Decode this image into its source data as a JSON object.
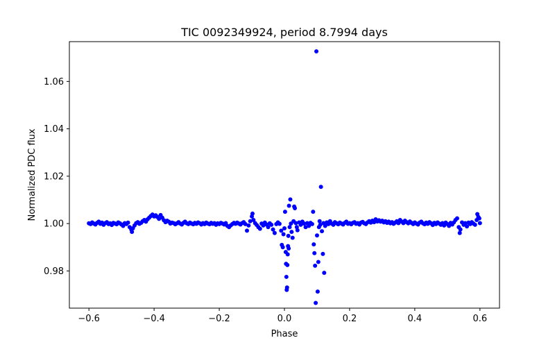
{
  "chart_data": {
    "type": "scatter",
    "title": "TIC 0092349924, period 8.7994 days",
    "xlabel": "Phase",
    "ylabel": "Normalized PDC flux",
    "xlim": [
      -0.66,
      0.66
    ],
    "ylim": [
      0.9643,
      1.0768
    ],
    "xticks": [
      -0.6,
      -0.4,
      -0.2,
      0.0,
      0.2,
      0.4,
      0.6
    ],
    "xtick_labels": [
      "−0.6",
      "−0.4",
      "−0.2",
      "0.0",
      "0.2",
      "0.4",
      "0.6"
    ],
    "yticks": [
      0.98,
      1.0,
      1.02,
      1.04,
      1.06
    ],
    "ytick_labels": [
      "0.98",
      "1.00",
      "1.02",
      "1.04",
      "1.06"
    ],
    "marker_color": "#0000ff",
    "grid": false,
    "series": [
      {
        "name": "PDC flux",
        "points": [
          [
            -0.6,
            1.0001
          ],
          [
            -0.595,
            0.9998
          ],
          [
            -0.59,
            1.0005
          ],
          [
            -0.585,
            1.0
          ],
          [
            -0.58,
            0.9996
          ],
          [
            -0.575,
            1.0003
          ],
          [
            -0.57,
            1.0008
          ],
          [
            -0.565,
            0.9999
          ],
          [
            -0.56,
            1.0004
          ],
          [
            -0.555,
            0.9995
          ],
          [
            -0.55,
            1.0002
          ],
          [
            -0.545,
            1.0006
          ],
          [
            -0.54,
            0.9998
          ],
          [
            -0.535,
            1.0001
          ],
          [
            -0.53,
            0.9994
          ],
          [
            -0.525,
            1.0003
          ],
          [
            -0.52,
            1.0
          ],
          [
            -0.515,
            0.9997
          ],
          [
            -0.51,
            1.0005
          ],
          [
            -0.505,
            1.0001
          ],
          [
            -0.5,
            0.9996
          ],
          [
            -0.495,
            0.999
          ],
          [
            -0.49,
            1.0002
          ],
          [
            -0.485,
            0.9998
          ],
          [
            -0.48,
            1.0004
          ],
          [
            -0.475,
            0.9985
          ],
          [
            -0.47,
            0.9975
          ],
          [
            -0.468,
            0.9965
          ],
          [
            -0.465,
            0.998
          ],
          [
            -0.46,
            0.9992
          ],
          [
            -0.455,
            1.0002
          ],
          [
            -0.45,
            1.0006
          ],
          [
            -0.445,
            0.9999
          ],
          [
            -0.44,
            1.0003
          ],
          [
            -0.435,
            1.001
          ],
          [
            -0.43,
            1.0015
          ],
          [
            -0.425,
            1.0008
          ],
          [
            -0.42,
            1.0018
          ],
          [
            -0.415,
            1.0025
          ],
          [
            -0.41,
            1.0032
          ],
          [
            -0.405,
            1.0038
          ],
          [
            -0.4,
            1.003
          ],
          [
            -0.395,
            1.0035
          ],
          [
            -0.39,
            1.0028
          ],
          [
            -0.385,
            1.002
          ],
          [
            -0.38,
            1.0036
          ],
          [
            -0.375,
            1.0025
          ],
          [
            -0.37,
            1.0014
          ],
          [
            -0.365,
            1.0006
          ],
          [
            -0.36,
            1.0012
          ],
          [
            -0.355,
            1.0008
          ],
          [
            -0.35,
            1.0
          ],
          [
            -0.345,
            1.0004
          ],
          [
            -0.34,
            1.0002
          ],
          [
            -0.335,
            0.9997
          ],
          [
            -0.33,
            1.0001
          ],
          [
            -0.325,
            1.0006
          ],
          [
            -0.32,
            1.0
          ],
          [
            -0.315,
            0.9996
          ],
          [
            -0.31,
            1.0003
          ],
          [
            -0.305,
            1.0008
          ],
          [
            -0.3,
            1.0001
          ],
          [
            -0.295,
            0.9998
          ],
          [
            -0.29,
            1.0004
          ],
          [
            -0.285,
            1.0
          ],
          [
            -0.28,
            0.9997
          ],
          [
            -0.275,
            1.0003
          ],
          [
            -0.27,
            0.9999
          ],
          [
            -0.265,
            1.0005
          ],
          [
            -0.26,
            1.0001
          ],
          [
            -0.255,
            0.9996
          ],
          [
            -0.25,
            1.0002
          ],
          [
            -0.245,
            0.9998
          ],
          [
            -0.24,
            1.0004
          ],
          [
            -0.235,
            1.0
          ],
          [
            -0.23,
            0.9997
          ],
          [
            -0.225,
            1.0003
          ],
          [
            -0.22,
            0.9999
          ],
          [
            -0.215,
            1.0002
          ],
          [
            -0.21,
            0.9995
          ],
          [
            -0.205,
            1.0001
          ],
          [
            -0.2,
            0.9998
          ],
          [
            -0.195,
            1.0003
          ],
          [
            -0.19,
            1.0
          ],
          [
            -0.185,
            0.9996
          ],
          [
            -0.18,
            1.0002
          ],
          [
            -0.175,
            0.999
          ],
          [
            -0.17,
            0.9985
          ],
          [
            -0.165,
            0.9992
          ],
          [
            -0.16,
            0.9998
          ],
          [
            -0.155,
            1.0003
          ],
          [
            -0.15,
            0.9999
          ],
          [
            -0.145,
            1.0004
          ],
          [
            -0.14,
            1.0
          ],
          [
            -0.135,
            0.9996
          ],
          [
            -0.13,
            1.0002
          ],
          [
            -0.125,
            1.0006
          ],
          [
            -0.12,
            0.9998
          ],
          [
            -0.115,
            0.997
          ],
          [
            -0.11,
            0.9992
          ],
          [
            -0.105,
            1.001
          ],
          [
            -0.1,
            1.003
          ],
          [
            -0.098,
            1.0042
          ],
          [
            -0.095,
            1.0015
          ],
          [
            -0.09,
            1.0002
          ],
          [
            -0.085,
            0.9994
          ],
          [
            -0.08,
            0.9985
          ],
          [
            -0.075,
            0.9978
          ],
          [
            -0.07,
            1.0
          ],
          [
            -0.065,
            0.9992
          ],
          [
            -0.06,
            1.0004
          ],
          [
            -0.055,
            0.9996
          ],
          [
            -0.05,
            0.9985
          ],
          [
            -0.045,
            1.0001
          ],
          [
            -0.04,
            0.9995
          ],
          [
            -0.035,
            0.9975
          ],
          [
            -0.03,
            0.996
          ],
          [
            -0.025,
            0.9998
          ],
          [
            -0.02,
            1.0005
          ],
          [
            -0.015,
            0.9999
          ],
          [
            -0.01,
            0.997
          ],
          [
            -0.008,
            0.991
          ],
          [
            -0.005,
            0.99
          ],
          [
            -0.003,
            0.9955
          ],
          [
            0.0,
            0.998
          ],
          [
            0.002,
            1.005
          ],
          [
            0.004,
            0.988
          ],
          [
            0.005,
            0.983
          ],
          [
            0.006,
            0.9775
          ],
          [
            0.007,
            0.972
          ],
          [
            0.008,
            0.973
          ],
          [
            0.009,
            0.9825
          ],
          [
            0.01,
            0.987
          ],
          [
            0.011,
            0.9905
          ],
          [
            0.012,
            0.9948
          ],
          [
            0.013,
            0.9895
          ],
          [
            0.014,
            1.0075
          ],
          [
            0.016,
            0.9985
          ],
          [
            0.018,
            1.0102
          ],
          [
            0.02,
            1.0
          ],
          [
            0.022,
            0.9965
          ],
          [
            0.025,
            0.994
          ],
          [
            0.028,
            1.001
          ],
          [
            0.03,
            1.0072
          ],
          [
            0.032,
            1.0065
          ],
          [
            0.035,
            1.0002
          ],
          [
            0.038,
            0.9985
          ],
          [
            0.04,
            0.9972
          ],
          [
            0.045,
            1.0005
          ],
          [
            0.05,
            0.9995
          ],
          [
            0.055,
            1.0008
          ],
          [
            0.06,
            1.0
          ],
          [
            0.065,
            0.9985
          ],
          [
            0.07,
            1.0002
          ],
          [
            0.075,
            0.999
          ],
          [
            0.08,
            1.0003
          ],
          [
            0.085,
            0.9998
          ],
          [
            0.088,
            1.005
          ],
          [
            0.09,
            0.9912
          ],
          [
            0.092,
            0.9875
          ],
          [
            0.094,
            0.9822
          ],
          [
            0.096,
            0.9665
          ],
          [
            0.098,
            1.0727
          ],
          [
            0.1,
            0.995
          ],
          [
            0.102,
            0.9713
          ],
          [
            0.104,
            0.9838
          ],
          [
            0.106,
            0.9985
          ],
          [
            0.108,
            1.001
          ],
          [
            0.11,
            0.9995
          ],
          [
            0.112,
            1.0155
          ],
          [
            0.115,
            0.9968
          ],
          [
            0.118,
            0.9872
          ],
          [
            0.12,
            1.0002
          ],
          [
            0.122,
            0.9792
          ],
          [
            0.125,
            0.999
          ],
          [
            0.13,
            1.0005
          ],
          [
            0.135,
            0.9998
          ],
          [
            0.14,
            1.001
          ],
          [
            0.145,
            1.0
          ],
          [
            0.15,
            0.9995
          ],
          [
            0.155,
            1.0006
          ],
          [
            0.16,
            1.0001
          ],
          [
            0.165,
            0.9997
          ],
          [
            0.17,
            1.0004
          ],
          [
            0.175,
            1.0
          ],
          [
            0.18,
            0.9996
          ],
          [
            0.185,
            1.0003
          ],
          [
            0.19,
            1.0008
          ],
          [
            0.195,
            0.9999
          ],
          [
            0.2,
            1.0002
          ],
          [
            0.205,
            0.9997
          ],
          [
            0.21,
            1.0003
          ],
          [
            0.215,
            1.0006
          ],
          [
            0.22,
            0.9999
          ],
          [
            0.225,
            1.0002
          ],
          [
            0.23,
            0.9996
          ],
          [
            0.235,
            1.0004
          ],
          [
            0.24,
            1.0007
          ],
          [
            0.245,
            1.0001
          ],
          [
            0.25,
            0.9998
          ],
          [
            0.255,
            1.0005
          ],
          [
            0.26,
            1.001
          ],
          [
            0.265,
            1.0004
          ],
          [
            0.27,
            1.0012
          ],
          [
            0.275,
            1.0006
          ],
          [
            0.28,
            1.0018
          ],
          [
            0.285,
            1.0009
          ],
          [
            0.29,
            1.0014
          ],
          [
            0.295,
            1.0008
          ],
          [
            0.3,
            1.0012
          ],
          [
            0.305,
            1.0005
          ],
          [
            0.31,
            1.001
          ],
          [
            0.315,
            1.0003
          ],
          [
            0.32,
            1.0008
          ],
          [
            0.325,
            1.0001
          ],
          [
            0.33,
            1.0006
          ],
          [
            0.335,
            0.9999
          ],
          [
            0.34,
            1.0004
          ],
          [
            0.345,
            1.001
          ],
          [
            0.35,
            1.0002
          ],
          [
            0.355,
            1.0015
          ],
          [
            0.36,
            1.0008
          ],
          [
            0.365,
            1.0002
          ],
          [
            0.37,
            1.0012
          ],
          [
            0.375,
            1.0006
          ],
          [
            0.38,
            1.0001
          ],
          [
            0.385,
            1.0009
          ],
          [
            0.39,
            1.0003
          ],
          [
            0.395,
            0.9998
          ],
          [
            0.4,
            1.0005
          ],
          [
            0.405,
            1.0
          ],
          [
            0.41,
            0.9996
          ],
          [
            0.415,
            1.0004
          ],
          [
            0.42,
            1.0008
          ],
          [
            0.425,
            1.0001
          ],
          [
            0.43,
            0.9997
          ],
          [
            0.435,
            1.0004
          ],
          [
            0.44,
            0.9999
          ],
          [
            0.445,
            1.0006
          ],
          [
            0.45,
            1.0001
          ],
          [
            0.455,
            0.9994
          ],
          [
            0.46,
            1.0003
          ],
          [
            0.465,
            0.9998
          ],
          [
            0.47,
            1.0005
          ],
          [
            0.475,
            1.0
          ],
          [
            0.48,
            0.9995
          ],
          [
            0.485,
            1.0002
          ],
          [
            0.49,
            0.9992
          ],
          [
            0.495,
            1.0004
          ],
          [
            0.5,
            0.9998
          ],
          [
            0.505,
            0.999
          ],
          [
            0.51,
            1.0003
          ],
          [
            0.515,
            0.9996
          ],
          [
            0.52,
            1.0005
          ],
          [
            0.525,
            1.0015
          ],
          [
            0.53,
            1.0022
          ],
          [
            0.535,
            0.9985
          ],
          [
            0.538,
            0.996
          ],
          [
            0.54,
            0.9975
          ],
          [
            0.545,
            1.0005
          ],
          [
            0.55,
            0.9995
          ],
          [
            0.555,
            1.0002
          ],
          [
            0.56,
            0.9988
          ],
          [
            0.565,
            1.0004
          ],
          [
            0.57,
            0.9998
          ],
          [
            0.575,
            1.0006
          ],
          [
            0.58,
            1.0
          ],
          [
            0.585,
            0.9995
          ],
          [
            0.59,
            1.0015
          ],
          [
            0.592,
            1.004
          ],
          [
            0.595,
            1.0028
          ],
          [
            0.598,
            1.0022
          ],
          [
            0.6,
            1.0002
          ]
        ]
      }
    ]
  }
}
